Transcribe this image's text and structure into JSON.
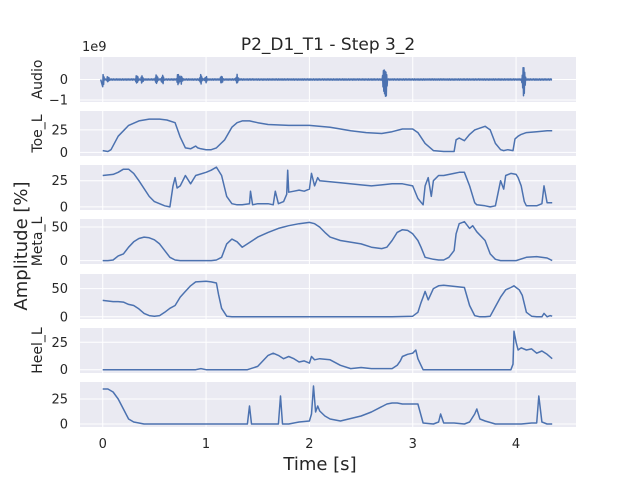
{
  "chart_data": {
    "type": "line",
    "title": "P2_D1_T1 - Step 3_2",
    "xlabel": "Time [s]",
    "ylabel": "Amplitude [%]",
    "xlim": [
      -0.22,
      4.58
    ],
    "xticks": [
      "0",
      "1",
      "2",
      "3",
      "4"
    ],
    "grid": true,
    "line_color": "#4c72b0",
    "background_color": "#eaeaf2",
    "panels": [
      {
        "label": "Audio",
        "offset_text": "1e9",
        "ylim": [
          -1.1,
          1.1
        ],
        "yticks": [
          0,
          -1
        ],
        "ytick_labels": [
          "0",
          "−1"
        ],
        "bursts": [
          [
            0.0,
            0.32,
            0.38
          ],
          [
            0.05,
            0.15,
            0.12
          ],
          [
            0.33,
            0.22,
            0.2
          ],
          [
            0.38,
            0.18,
            0.18
          ],
          [
            0.52,
            0.25,
            0.2
          ],
          [
            0.58,
            0.2,
            0.22
          ],
          [
            0.73,
            0.3,
            0.28
          ],
          [
            0.76,
            0.18,
            0.2
          ],
          [
            0.95,
            0.25,
            0.22
          ],
          [
            1.0,
            0.15,
            0.14
          ],
          [
            1.15,
            0.18,
            0.2
          ],
          [
            1.3,
            0.22,
            0.2
          ],
          [
            2.72,
            0.55,
            0.6
          ],
          [
            2.74,
            0.38,
            1.0
          ],
          [
            4.07,
            0.52,
            0.58
          ],
          [
            4.08,
            0.3,
            0.45
          ]
        ]
      },
      {
        "label": "Toe_L",
        "ylim": [
          -4,
          46
        ],
        "yticks": [
          0,
          25
        ],
        "ytick_labels": [
          "0",
          "25"
        ],
        "x": [
          0.0,
          0.05,
          0.08,
          0.15,
          0.25,
          0.35,
          0.45,
          0.55,
          0.62,
          0.7,
          0.75,
          0.8,
          0.85,
          0.9,
          0.92,
          0.95,
          1.0,
          1.05,
          1.1,
          1.18,
          1.25,
          1.3,
          1.35,
          1.42,
          1.5,
          1.6,
          1.8,
          2.0,
          2.2,
          2.4,
          2.55,
          2.7,
          2.8,
          2.9,
          3.0,
          3.05,
          3.12,
          3.2,
          3.3,
          3.4,
          3.42,
          3.45,
          3.5,
          3.55,
          3.6,
          3.7,
          3.75,
          3.8,
          3.85,
          3.88,
          3.92,
          3.97,
          3.99,
          4.02,
          4.05,
          4.1,
          4.2,
          4.3,
          4.35
        ],
        "y": [
          2,
          1,
          3,
          18,
          30,
          35,
          37,
          37,
          36,
          33,
          17,
          5,
          4,
          7,
          5,
          4,
          3,
          3,
          5,
          14,
          28,
          33,
          35,
          35,
          33,
          31,
          30,
          30,
          28,
          24,
          22,
          21,
          23,
          26,
          26,
          22,
          10,
          2,
          1,
          1,
          14,
          16,
          13,
          20,
          25,
          29,
          25,
          10,
          3,
          2,
          3,
          2,
          15,
          18,
          20,
          22,
          23,
          24,
          24
        ]
      },
      {
        "label": "",
        "ylim": [
          -3,
          40
        ],
        "yticks": [
          0,
          25
        ],
        "ytick_labels": [
          "0",
          "25"
        ],
        "x": [
          0.0,
          0.1,
          0.15,
          0.2,
          0.25,
          0.3,
          0.35,
          0.45,
          0.5,
          0.6,
          0.65,
          0.68,
          0.7,
          0.72,
          0.75,
          0.8,
          0.85,
          0.9,
          1.0,
          1.05,
          1.1,
          1.15,
          1.2,
          1.25,
          1.3,
          1.35,
          1.42,
          1.43,
          1.45,
          1.5,
          1.6,
          1.65,
          1.67,
          1.7,
          1.75,
          1.78,
          1.79,
          1.8,
          1.85,
          1.9,
          1.95,
          2.0,
          2.02,
          2.05,
          2.08,
          2.1,
          2.2,
          2.3,
          2.5,
          2.6,
          2.7,
          2.8,
          2.9,
          3.0,
          3.05,
          3.1,
          3.12,
          3.15,
          3.18,
          3.2,
          3.25,
          3.3,
          3.4,
          3.45,
          3.5,
          3.55,
          3.6,
          3.62,
          3.7,
          3.75,
          3.8,
          3.85,
          3.88,
          3.9,
          3.95,
          4.0,
          4.02,
          4.05,
          4.08,
          4.1,
          4.2,
          4.25,
          4.27,
          4.3,
          4.35
        ],
        "y": [
          30,
          31,
          33,
          36,
          36,
          32,
          25,
          10,
          5,
          1,
          0,
          20,
          28,
          18,
          20,
          30,
          22,
          30,
          33,
          35,
          38,
          30,
          10,
          3,
          2,
          2,
          3,
          15,
          2,
          3,
          3,
          2,
          15,
          3,
          5,
          12,
          35,
          14,
          15,
          16,
          15,
          17,
          32,
          20,
          28,
          25,
          24,
          23,
          21,
          20,
          21,
          22,
          22,
          20,
          8,
          2,
          20,
          28,
          10,
          25,
          30,
          30,
          32,
          33,
          33,
          20,
          4,
          2,
          1,
          0,
          1,
          25,
          17,
          30,
          32,
          31,
          28,
          20,
          5,
          1,
          1,
          3,
          20,
          4,
          4
        ]
      },
      {
        "label": "Meta_L",
        "ylim": [
          -5,
          62
        ],
        "yticks": [
          0,
          50
        ],
        "ytick_labels": [
          "0",
          "50"
        ],
        "x": [
          0.0,
          0.05,
          0.1,
          0.15,
          0.2,
          0.25,
          0.3,
          0.35,
          0.4,
          0.45,
          0.5,
          0.55,
          0.6,
          0.65,
          0.7,
          0.75,
          0.8,
          0.85,
          0.9,
          0.95,
          1.0,
          1.05,
          1.1,
          1.15,
          1.2,
          1.25,
          1.3,
          1.35,
          1.4,
          1.45,
          1.5,
          1.6,
          1.7,
          1.8,
          1.9,
          2.0,
          2.05,
          2.1,
          2.15,
          2.2,
          2.3,
          2.5,
          2.6,
          2.7,
          2.75,
          2.8,
          2.85,
          2.9,
          2.95,
          3.0,
          3.05,
          3.08,
          3.12,
          3.2,
          3.25,
          3.3,
          3.35,
          3.4,
          3.42,
          3.45,
          3.5,
          3.55,
          3.58,
          3.62,
          3.7,
          3.75,
          3.8,
          3.85,
          3.9,
          3.95,
          4.0,
          4.1,
          4.2,
          4.3,
          4.35
        ],
        "y": [
          0,
          0,
          1,
          7,
          10,
          20,
          28,
          33,
          35,
          34,
          31,
          25,
          15,
          5,
          1,
          0,
          0,
          0,
          0,
          0,
          0,
          0,
          1,
          5,
          25,
          32,
          28,
          20,
          25,
          30,
          35,
          42,
          48,
          52,
          55,
          57,
          55,
          50,
          42,
          35,
          30,
          25,
          20,
          18,
          20,
          30,
          42,
          46,
          45,
          40,
          30,
          20,
          5,
          2,
          1,
          1,
          5,
          15,
          40,
          55,
          58,
          48,
          52,
          43,
          30,
          10,
          2,
          0,
          0,
          0,
          0,
          5,
          6,
          4,
          0
        ]
      },
      {
        "label": "",
        "ylim": [
          -4,
          76
        ],
        "yticks": [
          0,
          50
        ],
        "ytick_labels": [
          "0",
          "50"
        ],
        "x": [
          0.0,
          0.1,
          0.15,
          0.2,
          0.25,
          0.3,
          0.35,
          0.4,
          0.45,
          0.5,
          0.55,
          0.6,
          0.65,
          0.7,
          0.75,
          0.8,
          0.85,
          0.9,
          1.0,
          1.05,
          1.1,
          1.12,
          1.15,
          1.2,
          1.25,
          1.3,
          1.35,
          1.5,
          1.6,
          1.8,
          2.0,
          2.2,
          2.4,
          2.6,
          2.8,
          3.0,
          3.05,
          3.08,
          3.1,
          3.12,
          3.15,
          3.2,
          3.25,
          3.3,
          3.4,
          3.5,
          3.55,
          3.6,
          3.65,
          3.7,
          3.75,
          3.8,
          3.85,
          3.9,
          3.95,
          3.98,
          4.0,
          4.03,
          4.06,
          4.1,
          4.15,
          4.2,
          4.25,
          4.27,
          4.3,
          4.33,
          4.35
        ],
        "y": [
          29,
          27,
          27,
          26,
          22,
          20,
          14,
          6,
          2,
          1,
          2,
          8,
          15,
          20,
          35,
          45,
          55,
          62,
          63,
          62,
          60,
          40,
          15,
          1,
          0,
          0,
          0,
          0,
          0,
          0,
          0,
          0,
          0,
          0,
          0,
          1,
          8,
          25,
          35,
          45,
          30,
          50,
          55,
          56,
          54,
          52,
          20,
          2,
          0,
          0,
          1,
          18,
          35,
          48,
          52,
          55,
          52,
          48,
          38,
          8,
          1,
          0,
          0,
          6,
          0,
          2,
          1
        ]
      },
      {
        "label": "Heel_L",
        "ylim": [
          -3,
          38
        ],
        "yticks": [
          0,
          25
        ],
        "ytick_labels": [
          "0",
          "25"
        ],
        "x": [
          0.0,
          0.5,
          0.9,
          0.95,
          1.0,
          1.4,
          1.5,
          1.55,
          1.6,
          1.65,
          1.7,
          1.75,
          1.8,
          1.85,
          1.9,
          1.95,
          2.0,
          2.02,
          2.05,
          2.1,
          2.2,
          2.3,
          2.4,
          2.5,
          2.6,
          2.7,
          2.8,
          2.85,
          2.88,
          2.9,
          2.95,
          3.0,
          3.03,
          3.05,
          3.08,
          3.1,
          3.15,
          3.2,
          3.5,
          3.9,
          3.95,
          3.97,
          3.98,
          4.0,
          4.02,
          4.05,
          4.1,
          4.15,
          4.2,
          4.25,
          4.3,
          4.35
        ],
        "y": [
          0,
          0,
          0,
          1,
          0,
          0,
          3,
          8,
          13,
          15,
          13,
          10,
          12,
          10,
          7,
          8,
          6,
          12,
          9,
          10,
          9,
          4,
          1,
          2,
          1,
          1,
          1,
          4,
          8,
          12,
          14,
          15,
          18,
          10,
          4,
          0,
          0,
          0,
          0,
          0,
          0,
          5,
          35,
          25,
          18,
          20,
          18,
          19,
          15,
          17,
          14,
          10
        ]
      },
      {
        "label": "",
        "ylim": [
          -3,
          42
        ],
        "yticks": [
          0,
          25
        ],
        "ytick_labels": [
          "0",
          "25"
        ],
        "x": [
          0.0,
          0.05,
          0.1,
          0.15,
          0.2,
          0.25,
          0.3,
          0.35,
          0.4,
          0.5,
          1.0,
          1.4,
          1.42,
          1.44,
          1.5,
          1.7,
          1.72,
          1.74,
          1.8,
          1.9,
          2.0,
          2.02,
          2.04,
          2.06,
          2.08,
          2.1,
          2.15,
          2.2,
          2.3,
          2.5,
          2.6,
          2.75,
          2.8,
          2.85,
          2.9,
          3.0,
          3.05,
          3.1,
          3.2,
          3.25,
          3.27,
          3.3,
          3.4,
          3.5,
          3.55,
          3.6,
          3.62,
          3.65,
          3.7,
          3.8,
          4.0,
          4.05,
          4.15,
          4.2,
          4.22,
          4.25,
          4.3,
          4.35
        ],
        "y": [
          35,
          35,
          32,
          25,
          15,
          5,
          2,
          1,
          0,
          0,
          0,
          0,
          18,
          0,
          0,
          0,
          28,
          0,
          0,
          2,
          3,
          10,
          38,
          12,
          18,
          13,
          8,
          5,
          3,
          8,
          12,
          20,
          21,
          21,
          20,
          20,
          20,
          1,
          0,
          2,
          10,
          1,
          1,
          0,
          2,
          10,
          15,
          5,
          3,
          0,
          0,
          0,
          1,
          1,
          28,
          2,
          0,
          0
        ]
      }
    ]
  }
}
